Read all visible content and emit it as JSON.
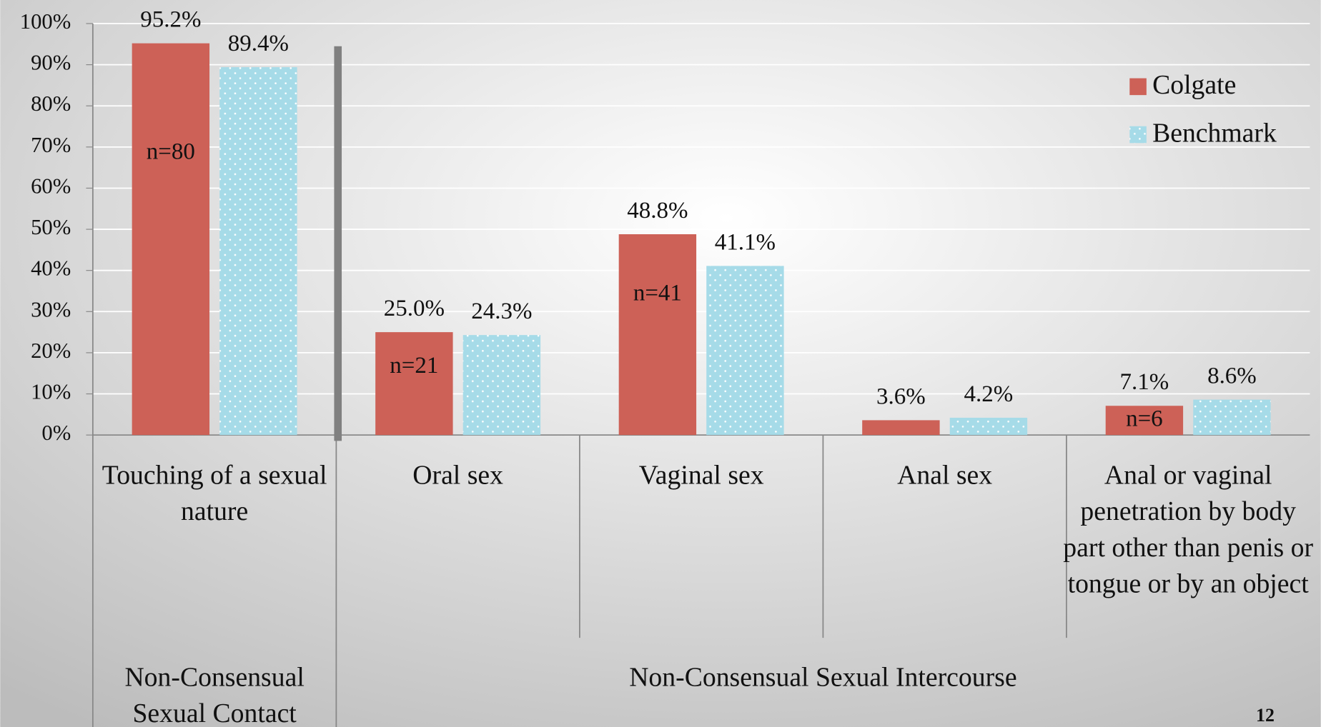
{
  "chart_data": {
    "type": "bar",
    "categories": [
      "Touching of a sexual nature",
      "Oral sex",
      "Vaginal sex",
      "Anal sex",
      "Anal or vaginal penetration by body part other than penis or tongue or by an object"
    ],
    "groups": [
      {
        "label": "Non-Consensual Sexual Contact",
        "span": [
          0,
          0
        ]
      },
      {
        "label": "Non-Consensual Sexual Intercourse",
        "span": [
          1,
          4
        ]
      }
    ],
    "series": [
      {
        "name": "Colgate",
        "color": "#cd6157",
        "values": [
          95.2,
          25.0,
          48.8,
          3.6,
          7.1
        ],
        "value_labels": [
          "95.2%",
          "25.0%",
          "48.8%",
          "3.6%",
          "7.1%"
        ],
        "annotations": [
          "n=80",
          "n=21",
          "n=41",
          null,
          "n=6"
        ]
      },
      {
        "name": "Benchmark",
        "color": "#a6dbe8",
        "pattern": "dots",
        "values": [
          89.4,
          24.3,
          41.1,
          4.2,
          8.6
        ],
        "value_labels": [
          "89.4%",
          "24.3%",
          "41.1%",
          "4.2%",
          "8.6%"
        ]
      }
    ],
    "ylim": [
      0,
      100
    ],
    "yticks": [
      {
        "value": 0,
        "label": "0%"
      },
      {
        "value": 10,
        "label": "10%"
      },
      {
        "value": 20,
        "label": "20%"
      },
      {
        "value": 30,
        "label": "30%"
      },
      {
        "value": 40,
        "label": "40%"
      },
      {
        "value": 50,
        "label": "50%"
      },
      {
        "value": 60,
        "label": "60%"
      },
      {
        "value": 70,
        "label": "70%"
      },
      {
        "value": 80,
        "label": "80%"
      },
      {
        "value": 90,
        "label": "90%"
      },
      {
        "value": 100,
        "label": "100%"
      }
    ],
    "grid": true,
    "legend": "top-right"
  },
  "page_number": "12"
}
